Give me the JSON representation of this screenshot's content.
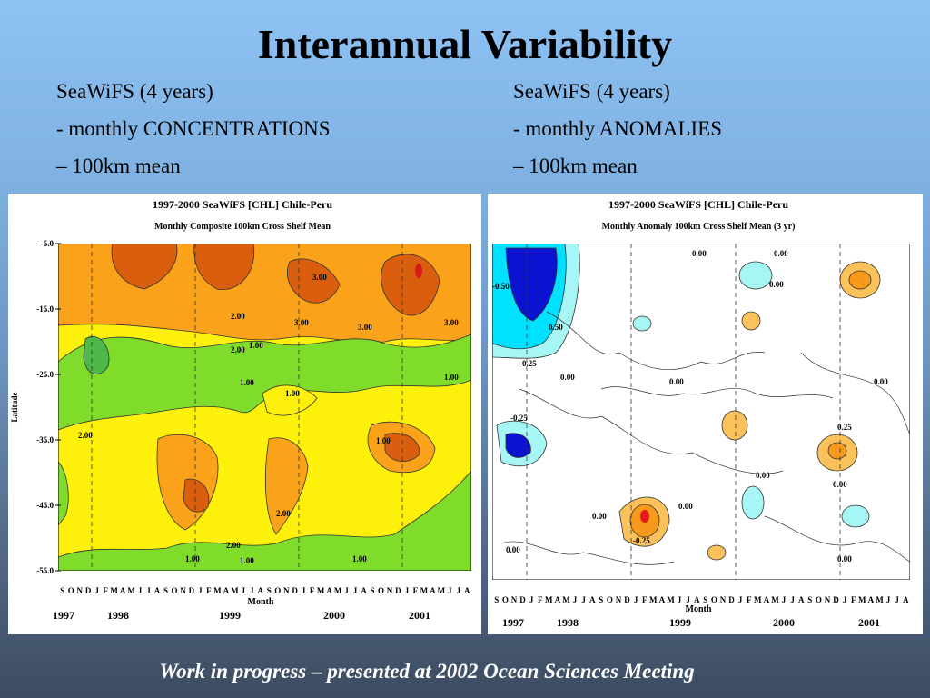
{
  "slide": {
    "title": "Interannual Variability",
    "left_bullets": [
      "SeaWiFS (4 years)",
      "- monthly CONCENTRATIONS",
      "– 100km mean"
    ],
    "right_bullets": [
      "SeaWiFS (4 years)",
      "- monthly ANOMALIES",
      "– 100km mean"
    ],
    "caption": "Work in progress – presented at 2002 Ocean Sciences Meeting"
  },
  "chart_data": [
    {
      "type": "heatmap",
      "title": "1997-2000 SeaWiFS [CHL] Chile-Peru",
      "subtitle": "Monthly Composite 100km Cross Shelf Mean",
      "xlabel": "Month",
      "ylabel": "Latitude",
      "yticks": [
        "-5.0",
        "-15.0",
        "-25.0",
        "-35.0",
        "-45.0",
        "-55.0"
      ],
      "ylim": [
        -55,
        -5
      ],
      "month_letters": "SONDJFMAMJJASONDJFMAMJJASONDJFMAMJJASONDJFMAMJJA",
      "years": [
        "1997",
        "1998",
        "1999",
        "2000",
        "2001"
      ],
      "contour_labels": [
        "3.00",
        "2.00",
        "3.00",
        "3.00",
        "3.00",
        "2.00",
        "1.00",
        "1.00",
        "1.00",
        "1.00",
        "2.00",
        "1.00",
        "2.00",
        "2.00",
        "1.00",
        "1.00",
        "1.00"
      ],
      "colors": {
        "band_high": "#d95f0e",
        "band_mid": "#f9a21a",
        "band_low": "#fdf10c",
        "band_lowest": "#7fdc2b",
        "band_min": "#4fb84b",
        "peak": "#d7191c"
      }
    },
    {
      "type": "heatmap",
      "title": "1997-2000 SeaWiFS [CHL] Chile-Peru",
      "subtitle": "Monthly Anomaly 100km Cross Shelf Mean (3 yr)",
      "xlabel": "Month",
      "ylabel": "",
      "month_letters": "SONDJFMAMJJASONDJFMAMJJASONDJFMAMJJASONDJFMAMJJA",
      "years": [
        "1997",
        "1998",
        "1999",
        "2000",
        "2001"
      ],
      "contour_labels": [
        "0.00",
        "0.00",
        "0.00",
        "-0.50",
        "0.50",
        "-0.25",
        "0.00",
        "0.00",
        "0.00",
        "-0.25",
        "0.25",
        "0.00",
        "0.00",
        "0.00",
        "0.00",
        "-0.25",
        "0.00",
        "0.00"
      ],
      "colors": {
        "neg_strong": "#0a14d0",
        "neg_mid": "#00e0ff",
        "neg_weak": "#a7f6f6",
        "pos_weak": "#fbc25b",
        "pos_mid": "#f79a1b",
        "pos_strong": "#e41a1c"
      }
    }
  ]
}
